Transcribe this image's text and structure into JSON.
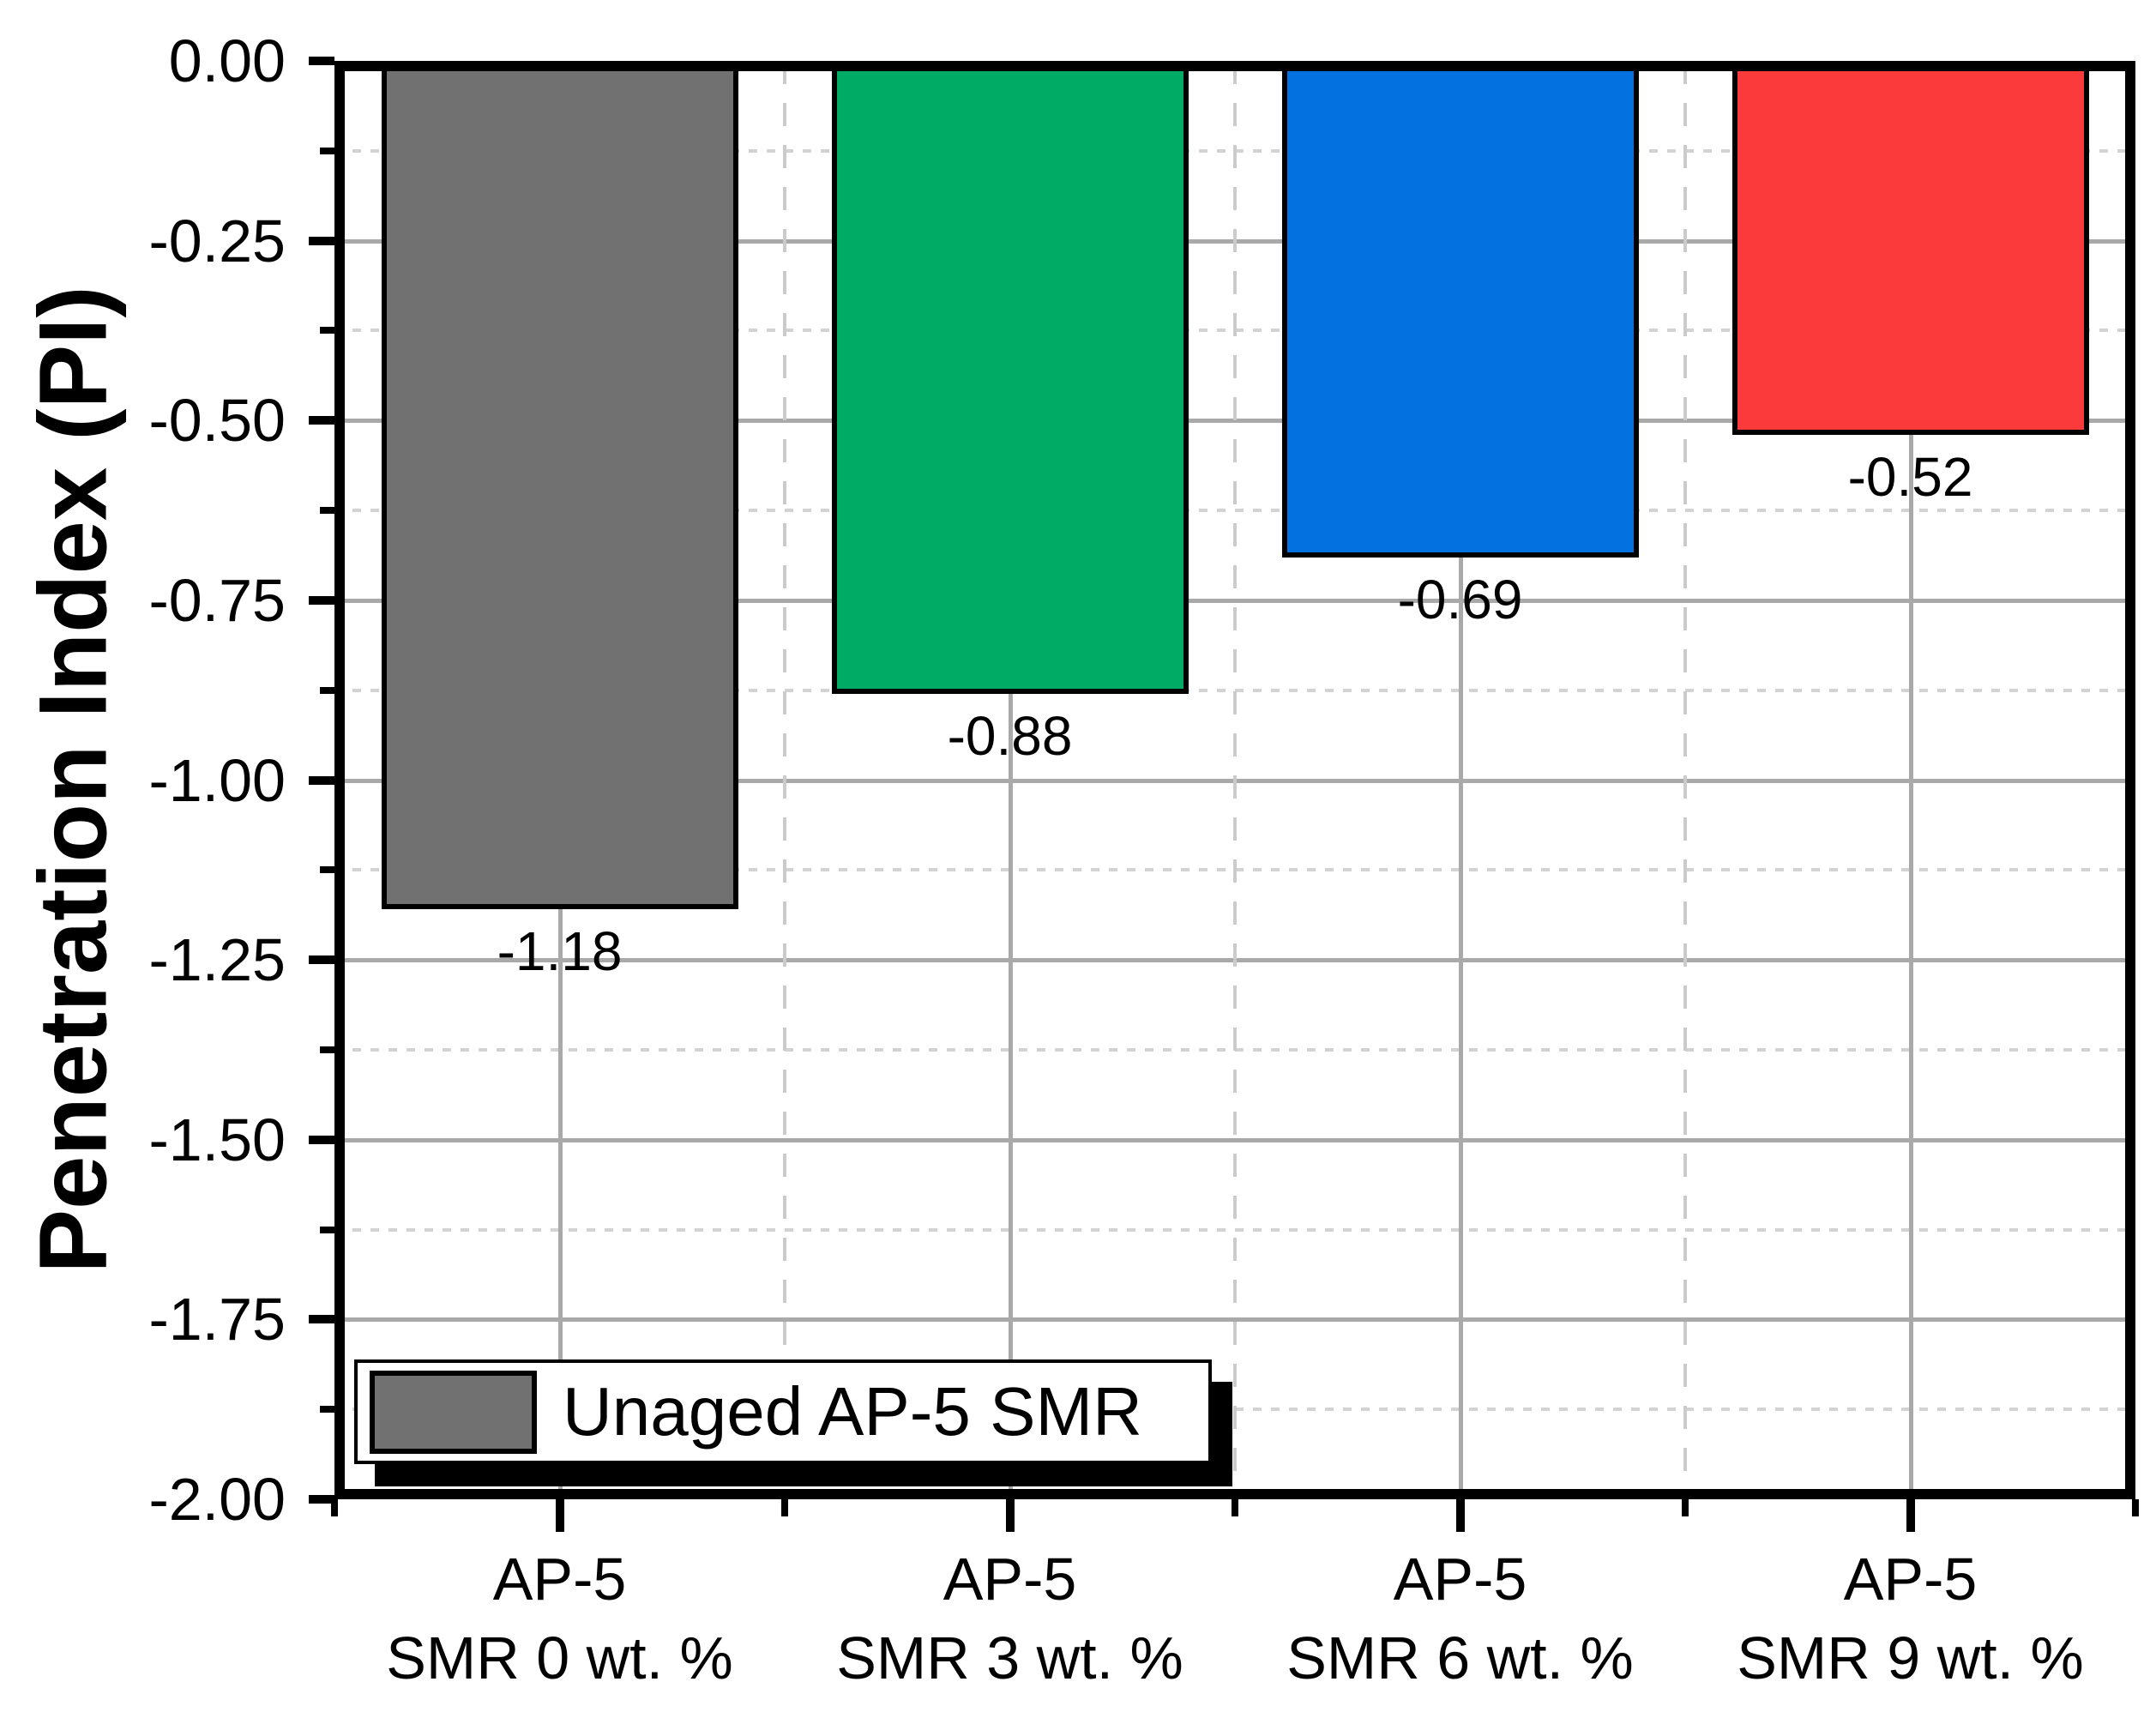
{
  "chart_data": {
    "type": "bar",
    "title": "",
    "ylabel": "Penetration Index (PI)",
    "xlabel": "",
    "ylim": [
      -2.0,
      0.0
    ],
    "y_major_step": 0.25,
    "y_minor_step": 0.125,
    "y_tick_labels": [
      "0.00",
      "-0.25",
      "-0.50",
      "-0.75",
      "-1.00",
      "-1.25",
      "-1.50",
      "-1.75",
      "-2.00"
    ],
    "grid": {
      "major_color": "#A9A9A9",
      "minor_color": "#D3D3D3",
      "boundary_dash_color": "#CBCBCB",
      "major_on": true,
      "minor_on": true
    },
    "categories": [
      {
        "line1": "AP-5",
        "line2": "SMR 0 wt. %"
      },
      {
        "line1": "AP-5",
        "line2": "SMR 3 wt. %"
      },
      {
        "line1": "AP-5",
        "line2": "SMR 6 wt. %"
      },
      {
        "line1": "AP-5",
        "line2": "SMR 9 wt. %"
      }
    ],
    "values": [
      -1.18,
      -0.88,
      -0.69,
      -0.52
    ],
    "value_labels": [
      "-1.18",
      "-0.88",
      "-0.69",
      "-0.52"
    ],
    "bar_colors": [
      "#717171",
      "#00AB66",
      "#0471E0",
      "#FB3B3B"
    ],
    "bar_border_color": "#000000",
    "legend": {
      "label": "Unaged AP-5 SMR",
      "swatch_color": "#717171",
      "position": "bottom-left"
    }
  }
}
